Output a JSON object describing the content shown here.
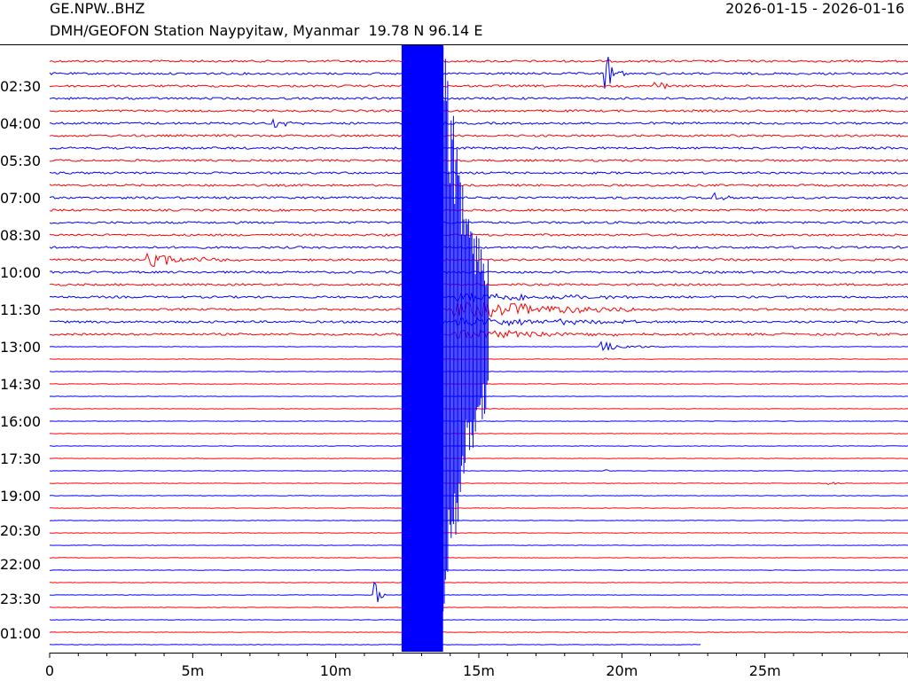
{
  "header": {
    "station_code": "GE.NPW..BHZ",
    "date_range": "2026-01-15 - 2026-01-16",
    "station_description": "DMH/GEOFON Station Naypyitaw, Myanmar  19.78 N 96.14 E"
  },
  "chart_data": {
    "type": "line",
    "title": "GE.NPW..BHZ",
    "xlabel": "",
    "ylabel": "",
    "x_unit": "minutes",
    "xlim": [
      0,
      30
    ],
    "x_ticks": [
      0,
      5,
      10,
      15,
      20,
      25
    ],
    "x_tick_labels": [
      "0",
      "5m",
      "10m",
      "15m",
      "20m",
      "25m"
    ],
    "y_tick_labels": [
      "02:30",
      "04:00",
      "05:30",
      "07:00",
      "08:30",
      "10:00",
      "11:30",
      "13:00",
      "14:30",
      "16:00",
      "17:30",
      "19:00",
      "20:30",
      "22:00",
      "23:30",
      "01:00"
    ],
    "line_minutes": 30,
    "line_count": 48,
    "colors": [
      "#ff0000",
      "#0000ff"
    ],
    "big_event": {
      "line_from": 1,
      "line_to": 48,
      "start_min": 12.3,
      "end_min": 14.1,
      "coda_end_line": 22
    },
    "events": [
      {
        "line": 1,
        "start_min": 19.4,
        "end_min": 20.2,
        "amp": 3.0
      },
      {
        "line": 2,
        "start_min": 21.1,
        "end_min": 21.8,
        "amp": 1.5
      },
      {
        "line": 5,
        "start_min": 7.8,
        "end_min": 10.0,
        "amp": 0.5
      },
      {
        "line": 11,
        "start_min": 23.1,
        "end_min": 24.0,
        "amp": 1.0
      },
      {
        "line": 16,
        "start_min": 3.3,
        "end_min": 8.0,
        "amp": 0.8
      },
      {
        "line": 23,
        "start_min": 19.2,
        "end_min": 22.0,
        "amp": 0.6
      },
      {
        "line": 24,
        "start_min": 19.3,
        "end_min": 20.2,
        "amp": 0.4
      },
      {
        "line": 33,
        "start_min": 19.4,
        "end_min": 19.8,
        "amp": 0.2
      },
      {
        "line": 34,
        "start_min": 27.2,
        "end_min": 28.0,
        "amp": 0.3
      },
      {
        "line": 43,
        "start_min": 11.3,
        "end_min": 11.8,
        "amp": 2.5
      }
    ],
    "last_line_end_min": 22.8
  }
}
